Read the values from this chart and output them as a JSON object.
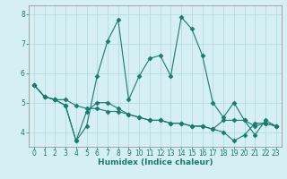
{
  "title": "",
  "xlabel": "Humidex (Indice chaleur)",
  "background_color": "#d6eff5",
  "line_color": "#1a7a6e",
  "grid_color": "#b0d8dd",
  "x_values": [
    0,
    1,
    2,
    3,
    4,
    5,
    6,
    7,
    8,
    9,
    10,
    11,
    12,
    13,
    14,
    15,
    16,
    17,
    18,
    19,
    20,
    21,
    22,
    23
  ],
  "series1": [
    5.6,
    5.2,
    5.1,
    4.9,
    3.7,
    4.2,
    5.9,
    7.1,
    7.8,
    5.1,
    5.9,
    6.5,
    6.6,
    5.9,
    7.9,
    7.5,
    6.6,
    5.0,
    4.5,
    5.0,
    4.4,
    3.9,
    4.4,
    4.2
  ],
  "series2": [
    5.6,
    5.2,
    5.1,
    4.9,
    3.7,
    4.7,
    5.0,
    5.0,
    4.8,
    4.6,
    4.5,
    4.4,
    4.4,
    4.3,
    4.3,
    4.2,
    4.2,
    4.1,
    4.4,
    4.4,
    4.4,
    4.2,
    4.3,
    4.2
  ],
  "series3": [
    5.6,
    5.2,
    5.1,
    5.1,
    4.9,
    4.8,
    4.8,
    4.7,
    4.7,
    4.6,
    4.5,
    4.4,
    4.4,
    4.3,
    4.3,
    4.2,
    4.2,
    4.1,
    4.0,
    3.7,
    3.9,
    4.3,
    4.3,
    4.2
  ],
  "ylim": [
    3.5,
    8.3
  ],
  "xlim": [
    -0.5,
    23.5
  ],
  "yticks": [
    4,
    5,
    6,
    7,
    8
  ],
  "xticks": [
    0,
    1,
    2,
    3,
    4,
    5,
    6,
    7,
    8,
    9,
    10,
    11,
    12,
    13,
    14,
    15,
    16,
    17,
    18,
    19,
    20,
    21,
    22,
    23
  ],
  "marker": "D",
  "markersize": 2.5,
  "linewidth": 0.8,
  "tick_labelsize": 5.5,
  "xlabel_fontsize": 6.5,
  "xlabel_fontweight": "bold"
}
